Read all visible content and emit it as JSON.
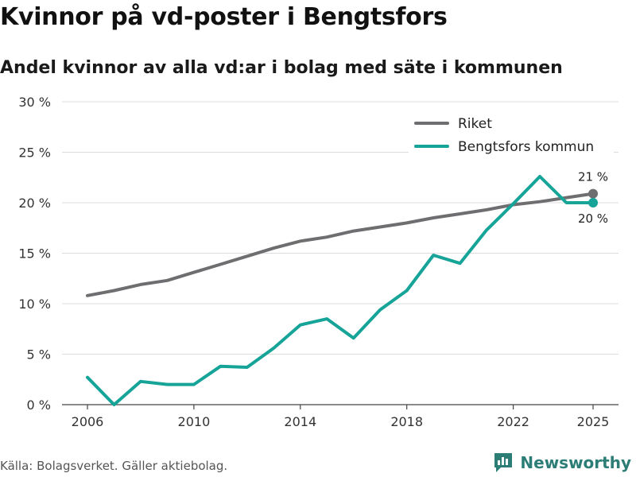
{
  "header": {
    "title": "Kvinnor på vd-poster i Bengtsfors",
    "subtitle": "Andel kvinnor av alla vd:ar i bolag med säte i kommunen"
  },
  "footer": {
    "source": "Källa: Bolagsverket. Gäller aktiebolag.",
    "brand": "Newsworthy"
  },
  "icons": {
    "brand_logo": "newsworthy-logo-icon"
  },
  "colors": {
    "riket": "#6e6e71",
    "kommun": "#16a398",
    "brand": "#2b7d76",
    "grid": "#dcdcdc"
  },
  "chart_data": {
    "type": "line",
    "title": "Kvinnor på vd-poster i Bengtsfors",
    "xlabel": "",
    "ylabel": "",
    "x": [
      2006,
      2007,
      2008,
      2009,
      2010,
      2011,
      2012,
      2013,
      2014,
      2015,
      2016,
      2017,
      2018,
      2019,
      2020,
      2021,
      2022,
      2023,
      2024,
      2025
    ],
    "xlim": [
      2006,
      2025
    ],
    "ylim": [
      0,
      30
    ],
    "xticks": [
      2006,
      2010,
      2014,
      2018,
      2022,
      2025
    ],
    "xtick_labels": [
      "2006",
      "2010",
      "2014",
      "2018",
      "2022",
      "2025"
    ],
    "yticks": [
      0,
      5,
      10,
      15,
      20,
      25,
      30
    ],
    "ytick_labels": [
      "0 %",
      "5 %",
      "10 %",
      "15 %",
      "20 %",
      "25 %",
      "30 %"
    ],
    "grid": true,
    "legend_position": "top-right",
    "series": [
      {
        "name": "Riket",
        "color": "#6e6e71",
        "values": [
          10.8,
          11.3,
          11.9,
          12.3,
          13.1,
          13.9,
          14.7,
          15.5,
          16.2,
          16.6,
          17.2,
          17.6,
          18.0,
          18.5,
          18.9,
          19.3,
          19.8,
          20.1,
          20.5,
          20.9
        ],
        "end_label": "21 %"
      },
      {
        "name": "Bengtsfors kommun",
        "color": "#16a398",
        "values": [
          2.7,
          0.0,
          2.3,
          2.0,
          2.0,
          3.8,
          3.7,
          5.6,
          7.9,
          8.5,
          6.6,
          9.4,
          11.3,
          14.8,
          14.0,
          17.3,
          19.9,
          22.6,
          20.0,
          20.0
        ],
        "end_label": "20 %"
      }
    ]
  }
}
